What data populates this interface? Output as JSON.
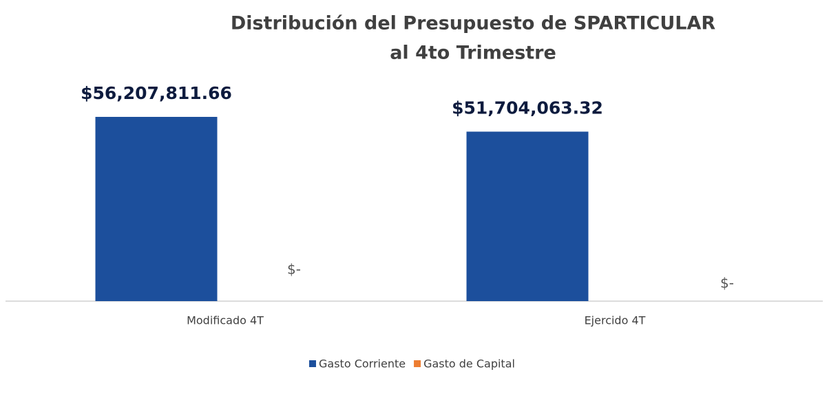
{
  "chart_data": {
    "type": "bar",
    "title": "Distribución  del Presupuesto de SPARTICULAR",
    "subtitle": "al 4to Trimestre",
    "categories": [
      "Modificado 4T",
      "Ejercido 4T"
    ],
    "series": [
      {
        "name": "Gasto Corriente",
        "color": "#1c4f9c",
        "values": [
          56207811.66,
          51704063.32
        ],
        "value_labels": [
          "$56,207,811.66",
          "$51,704,063.32"
        ]
      },
      {
        "name": "Gasto de Capital",
        "color": "#ed7d31",
        "values": [
          0,
          0
        ],
        "value_labels": [
          "$-",
          "$-"
        ]
      }
    ],
    "legend": "bottom"
  }
}
